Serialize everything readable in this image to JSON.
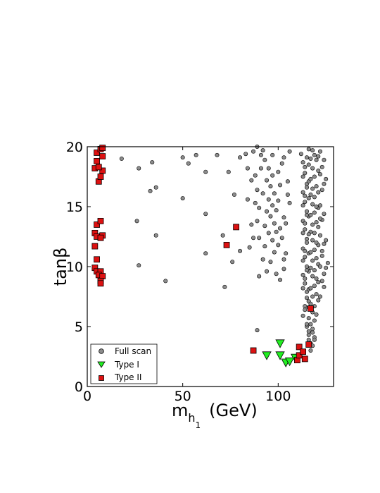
{
  "chart_data": {
    "type": "scatter",
    "title": "",
    "xlabel": {
      "main": "m",
      "sub": "h",
      "subsub": "1",
      "unit": "(GeV)"
    },
    "ylabel": "tanβ",
    "xlim": [
      0,
      129
    ],
    "ylim": [
      0,
      20
    ],
    "xticks": [
      0,
      50,
      100
    ],
    "yticks": [
      0,
      5,
      10,
      15,
      20
    ],
    "grid": false,
    "legend_position": "bottom-left",
    "series": [
      {
        "name": "Full scan",
        "marker": "circle",
        "color": "#8c8c8c",
        "edge": "#000000",
        "points": [
          [
            18,
            19.0
          ],
          [
            27,
            18.2
          ],
          [
            34,
            18.7
          ],
          [
            26,
            13.8
          ],
          [
            33,
            16.3
          ],
          [
            36,
            16.6
          ],
          [
            36,
            12.6
          ],
          [
            27,
            10.1
          ],
          [
            41,
            8.8
          ],
          [
            50,
            15.7
          ],
          [
            50,
            19.1
          ],
          [
            53,
            18.6
          ],
          [
            57,
            19.3
          ],
          [
            62,
            17.9
          ],
          [
            62,
            14.4
          ],
          [
            62,
            11.1
          ],
          [
            68,
            19.3
          ],
          [
            71,
            12.6
          ],
          [
            72,
            8.3
          ],
          [
            74,
            17.9
          ],
          [
            76,
            10.4
          ],
          [
            77,
            16.0
          ],
          [
            80,
            19.1
          ],
          [
            80,
            11.3
          ],
          [
            83,
            19.4
          ],
          [
            84,
            18.2
          ],
          [
            87,
            19.6
          ],
          [
            88,
            17.6
          ],
          [
            89,
            20.0
          ],
          [
            91,
            19.3
          ],
          [
            84,
            15.6
          ],
          [
            86,
            13.5
          ],
          [
            85,
            11.6
          ],
          [
            87,
            12.4
          ],
          [
            88,
            15.3
          ],
          [
            89,
            16.4
          ],
          [
            89,
            13.8
          ],
          [
            90,
            14.9
          ],
          [
            90,
            12.4
          ],
          [
            90,
            9.2
          ],
          [
            92,
            10.6
          ],
          [
            92,
            16.1
          ],
          [
            93,
            11.7
          ],
          [
            93,
            13.4
          ],
          [
            94,
            14.6
          ],
          [
            94,
            17.2
          ],
          [
            95,
            15.6
          ],
          [
            95,
            12.8
          ],
          [
            95,
            18.2
          ],
          [
            96,
            10.4
          ],
          [
            96,
            14.2
          ],
          [
            96,
            16.7
          ],
          [
            97,
            12.2
          ],
          [
            97,
            15.1
          ],
          [
            97,
            17.6
          ],
          [
            98,
            13.6
          ],
          [
            98,
            11.2
          ],
          [
            98,
            16.1
          ],
          [
            99,
            14.7
          ],
          [
            99,
            12.9
          ],
          [
            99,
            9.4
          ],
          [
            100,
            15.5
          ],
          [
            100,
            11.8
          ],
          [
            101,
            13.2
          ],
          [
            101,
            16.8
          ],
          [
            102,
            18.6
          ],
          [
            102,
            12.4
          ],
          [
            103,
            14.1
          ],
          [
            103,
            9.8
          ],
          [
            104,
            11.1
          ],
          [
            104,
            13.6
          ],
          [
            105,
            17.1
          ],
          [
            106,
            19.6
          ],
          [
            106,
            15.3
          ],
          [
            89,
            4.7
          ],
          [
            91,
            18.2
          ],
          [
            86,
            17.2
          ],
          [
            93,
            18.9
          ],
          [
            100,
            17.9
          ],
          [
            103,
            19.1
          ],
          [
            105,
            16.0
          ],
          [
            103,
            10.6
          ],
          [
            101,
            8.9
          ],
          [
            97,
            19.3
          ],
          [
            94,
            9.6
          ],
          [
            92,
            19.7
          ],
          [
            112,
            19.4
          ],
          [
            113,
            18.7
          ],
          [
            114,
            17.8
          ],
          [
            115,
            16.9
          ],
          [
            113,
            16.2
          ],
          [
            114,
            15.4
          ],
          [
            115,
            14.6
          ],
          [
            113,
            13.8
          ],
          [
            114,
            13.1
          ],
          [
            115,
            12.3
          ],
          [
            113,
            11.5
          ],
          [
            114,
            10.8
          ],
          [
            115,
            10.0
          ],
          [
            113,
            9.3
          ],
          [
            114,
            8.6
          ],
          [
            115,
            7.9
          ],
          [
            116,
            7.1
          ],
          [
            114,
            6.4
          ],
          [
            116,
            5.7
          ],
          [
            115,
            5.0
          ],
          [
            116,
            4.3
          ],
          [
            117,
            3.6
          ],
          [
            117,
            3.0
          ],
          [
            116,
            19.8
          ],
          [
            117,
            19.0
          ],
          [
            118,
            18.2
          ],
          [
            119,
            17.5
          ],
          [
            120,
            16.7
          ],
          [
            117,
            16.0
          ],
          [
            118,
            15.2
          ],
          [
            119,
            14.5
          ],
          [
            120,
            13.7
          ],
          [
            117,
            12.9
          ],
          [
            118,
            12.2
          ],
          [
            119,
            11.4
          ],
          [
            120,
            10.7
          ],
          [
            117,
            9.9
          ],
          [
            118,
            9.2
          ],
          [
            119,
            8.4
          ],
          [
            120,
            7.7
          ],
          [
            117,
            6.9
          ],
          [
            118,
            6.2
          ],
          [
            119,
            5.5
          ],
          [
            118,
            4.8
          ],
          [
            119,
            4.1
          ],
          [
            118,
            3.4
          ],
          [
            116,
            18.5
          ],
          [
            116,
            17.1
          ],
          [
            116,
            15.7
          ],
          [
            116,
            14.2
          ],
          [
            116,
            12.7
          ],
          [
            116,
            11.1
          ],
          [
            116,
            9.6
          ],
          [
            116,
            8.1
          ],
          [
            116,
            6.6
          ],
          [
            121,
            19.2
          ],
          [
            121,
            18.0
          ],
          [
            121,
            16.2
          ],
          [
            121,
            14.9
          ],
          [
            121,
            13.3
          ],
          [
            121,
            11.8
          ],
          [
            121,
            10.2
          ],
          [
            121,
            8.7
          ],
          [
            121,
            7.2
          ],
          [
            122,
            17.7
          ],
          [
            122,
            15.1
          ],
          [
            122,
            12.6
          ],
          [
            122,
            10.0
          ],
          [
            122,
            7.5
          ],
          [
            123,
            16.4
          ],
          [
            123,
            13.9
          ],
          [
            123,
            11.3
          ],
          [
            123,
            8.8
          ],
          [
            124,
            18.9
          ],
          [
            124,
            14.4
          ],
          [
            124,
            11.9
          ],
          [
            124,
            9.4
          ],
          [
            125,
            17.3
          ],
          [
            125,
            12.2
          ],
          [
            125,
            9.9
          ],
          [
            126,
            10.3
          ],
          [
            118,
            19.7
          ],
          [
            119,
            19.3
          ],
          [
            120,
            18.9
          ],
          [
            117,
            17.3
          ],
          [
            118,
            16.5
          ],
          [
            119,
            15.8
          ],
          [
            120,
            15.0
          ],
          [
            117,
            14.3
          ],
          [
            118,
            13.5
          ],
          [
            119,
            12.8
          ],
          [
            120,
            12.0
          ],
          [
            117,
            11.2
          ],
          [
            118,
            10.5
          ],
          [
            119,
            9.7
          ],
          [
            120,
            9.0
          ],
          [
            117,
            8.2
          ],
          [
            118,
            7.5
          ],
          [
            119,
            6.7
          ],
          [
            120,
            6.0
          ],
          [
            117,
            5.2
          ],
          [
            118,
            4.5
          ],
          [
            119,
            3.9
          ],
          [
            115,
            19.1
          ],
          [
            114,
            18.3
          ],
          [
            113,
            17.5
          ],
          [
            115,
            16.6
          ],
          [
            114,
            15.9
          ],
          [
            113,
            15.1
          ],
          [
            115,
            14.3
          ],
          [
            114,
            13.6
          ],
          [
            113,
            12.8
          ],
          [
            115,
            12.0
          ],
          [
            114,
            11.3
          ],
          [
            113,
            10.5
          ],
          [
            115,
            9.7
          ],
          [
            114,
            9.0
          ],
          [
            113,
            8.2
          ],
          [
            115,
            7.4
          ],
          [
            114,
            6.7
          ],
          [
            113,
            5.9
          ],
          [
            115,
            5.2
          ],
          [
            116,
            4.6
          ],
          [
            116,
            3.9
          ],
          [
            122,
            19.6
          ],
          [
            122,
            14.0
          ],
          [
            123,
            18.3
          ],
          [
            123,
            10.9
          ],
          [
            124,
            16.9
          ],
          [
            124,
            8.3
          ]
        ]
      },
      {
        "name": "Type I",
        "marker": "triangle-down",
        "color": "#22ee22",
        "edge": "#000000",
        "points": [
          [
            94,
            2.6
          ],
          [
            101,
            2.6
          ],
          [
            101,
            3.6
          ],
          [
            104,
            2.0
          ],
          [
            106,
            2.1
          ],
          [
            109,
            2.4
          ]
        ]
      },
      {
        "name": "Type II",
        "marker": "square",
        "color": "#dd1111",
        "edge": "#000000",
        "points": [
          [
            5,
            19.5
          ],
          [
            5,
            18.8
          ],
          [
            4,
            18.2
          ],
          [
            6,
            17.1
          ],
          [
            7,
            17.5
          ],
          [
            8,
            18.0
          ],
          [
            7,
            19.8
          ],
          [
            8,
            19.2
          ],
          [
            6,
            18.3
          ],
          [
            8,
            19.9
          ],
          [
            5,
            13.5
          ],
          [
            4,
            12.8
          ],
          [
            5,
            12.5
          ],
          [
            7,
            13.8
          ],
          [
            8,
            12.6
          ],
          [
            7,
            12.4
          ],
          [
            4,
            11.7
          ],
          [
            5,
            10.6
          ],
          [
            4,
            9.9
          ],
          [
            5,
            9.6
          ],
          [
            7,
            9.6
          ],
          [
            6,
            9.3
          ],
          [
            8,
            9.2
          ],
          [
            7,
            8.8
          ],
          [
            7,
            8.6
          ],
          [
            73,
            11.8
          ],
          [
            78,
            13.3
          ],
          [
            87,
            3.0
          ],
          [
            110,
            2.2
          ],
          [
            111,
            3.3
          ],
          [
            111,
            2.6
          ],
          [
            113,
            2.9
          ],
          [
            114,
            2.3
          ],
          [
            116,
            3.5
          ],
          [
            117,
            6.5
          ]
        ]
      }
    ]
  }
}
